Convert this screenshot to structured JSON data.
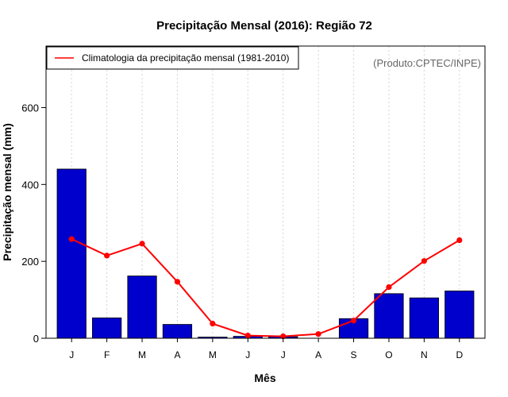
{
  "chart_data": {
    "type": "bar",
    "title": "Precipitação Mensal (2016): Região 72",
    "xlabel": "Mês",
    "ylabel": "Precipitação mensal (mm)",
    "credit": "(Produto:CPTEC/INPE)",
    "categories": [
      "J",
      "F",
      "M",
      "A",
      "M",
      "J",
      "J",
      "A",
      "S",
      "O",
      "N",
      "D"
    ],
    "ylim": [
      0,
      760
    ],
    "yticks": [
      0,
      200,
      400,
      600
    ],
    "grid": "vertical dotted",
    "legend_position": "top-left",
    "series": [
      {
        "name": "Precipitação mensal (2016)",
        "type": "bar",
        "color": "#0000cc",
        "values": [
          440,
          53,
          162,
          36,
          3,
          5,
          4,
          0,
          51,
          116,
          105,
          123
        ]
      },
      {
        "name": "Climatologia da precipitação mensal (1981-2010)",
        "type": "line",
        "color": "#ff0000",
        "values": [
          258,
          215,
          246,
          147,
          38,
          7,
          5,
          11,
          46,
          133,
          201,
          255
        ]
      }
    ]
  }
}
